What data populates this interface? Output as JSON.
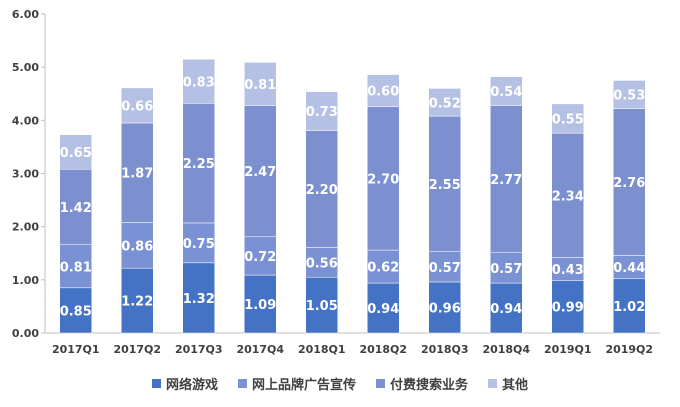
{
  "chart_data": {
    "type": "bar",
    "stacked": true,
    "title": "",
    "xlabel": "",
    "ylabel": "",
    "ylim": [
      0,
      6
    ],
    "yticks": [
      "0.00",
      "1.00",
      "2.00",
      "3.00",
      "4.00",
      "5.00",
      "6.00"
    ],
    "grid": false,
    "legend_position": "bottom",
    "categories": [
      "2017Q1",
      "2017Q2",
      "2017Q3",
      "2017Q4",
      "2018Q1",
      "2018Q2",
      "2018Q3",
      "2018Q4",
      "2019Q1",
      "2019Q2"
    ],
    "series": [
      {
        "name": "网络游戏",
        "color": "#4472C4",
        "values": [
          0.85,
          1.22,
          1.32,
          1.09,
          1.05,
          0.94,
          0.96,
          0.94,
          0.99,
          1.02
        ]
      },
      {
        "name": "网上品牌广告宣传",
        "color": "#7A92D4",
        "values": [
          0.81,
          0.86,
          0.75,
          0.72,
          0.56,
          0.62,
          0.57,
          0.57,
          0.43,
          0.44
        ]
      },
      {
        "name": "付费搜索业务",
        "color": "#7C8FCF",
        "values": [
          1.42,
          1.87,
          2.25,
          2.47,
          2.2,
          2.7,
          2.55,
          2.77,
          2.34,
          2.76
        ]
      },
      {
        "name": "其他",
        "color": "#B4C0E4",
        "values": [
          0.65,
          0.66,
          0.83,
          0.81,
          0.73,
          0.6,
          0.52,
          0.54,
          0.55,
          0.53
        ]
      }
    ]
  }
}
